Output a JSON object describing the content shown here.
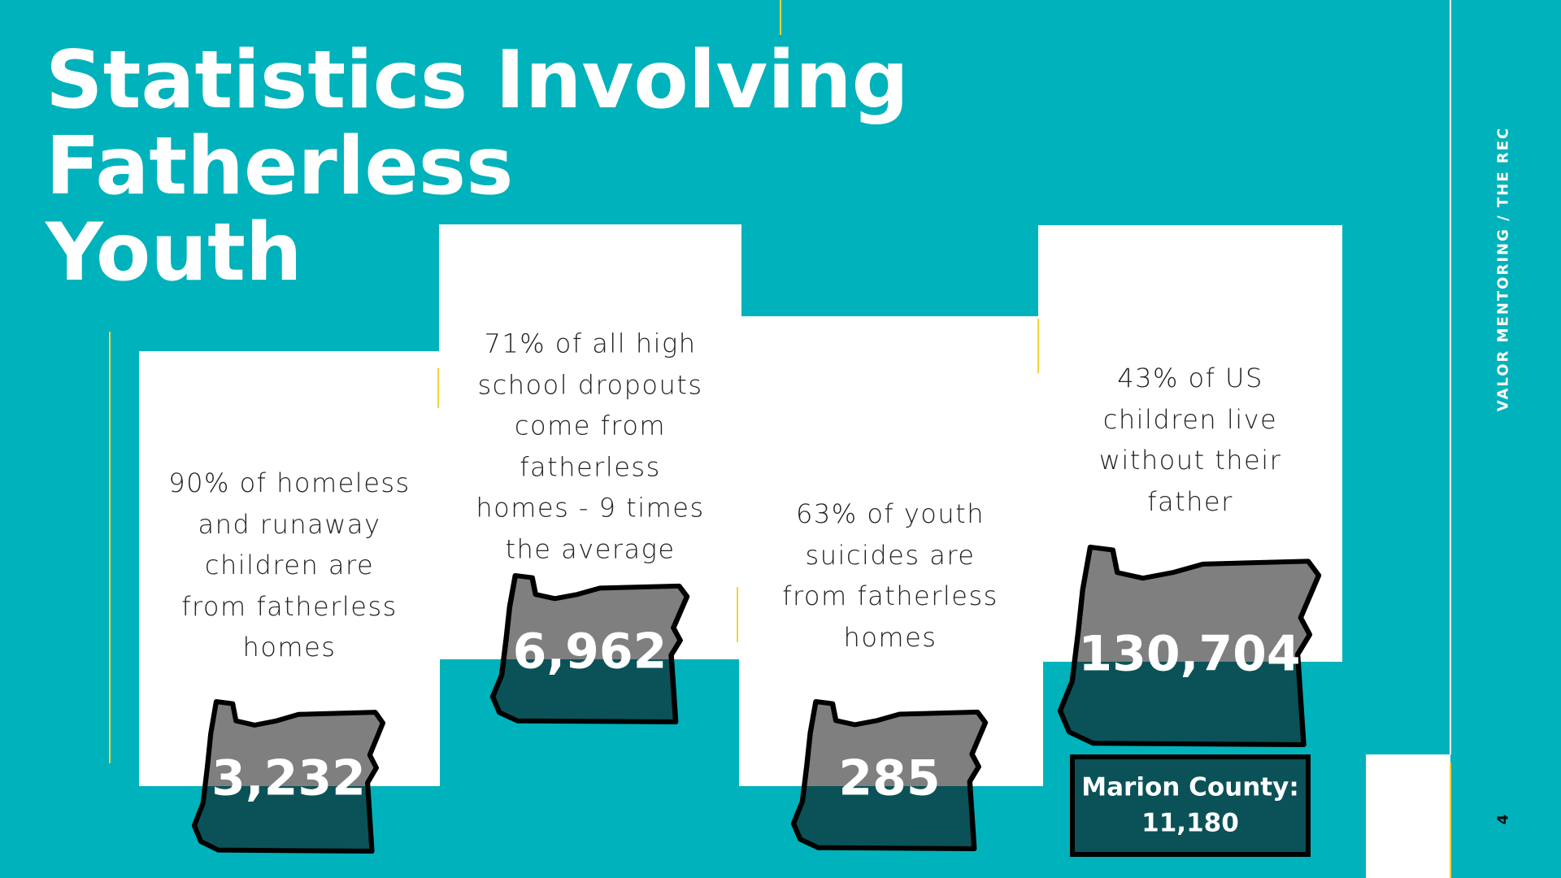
{
  "title": [
    "Statistics Involving",
    "Fatherless",
    "Youth"
  ],
  "side_label": "VALOR MENTORING / THE REC",
  "page_number": "4",
  "stats": [
    {
      "text": "90% of homeless and runaway children are from fatherless homes",
      "number": "3,232"
    },
    {
      "text": "71% of all high school dropouts come from fatherless homes - 9 times the average",
      "number": "6,962"
    },
    {
      "text": "63% of youth suicides are from fatherless homes",
      "number": "285"
    },
    {
      "text": "43% of US children live without their father",
      "number": "130,704"
    }
  ],
  "county": {
    "label": "Marion County:",
    "number": "11,180"
  }
}
